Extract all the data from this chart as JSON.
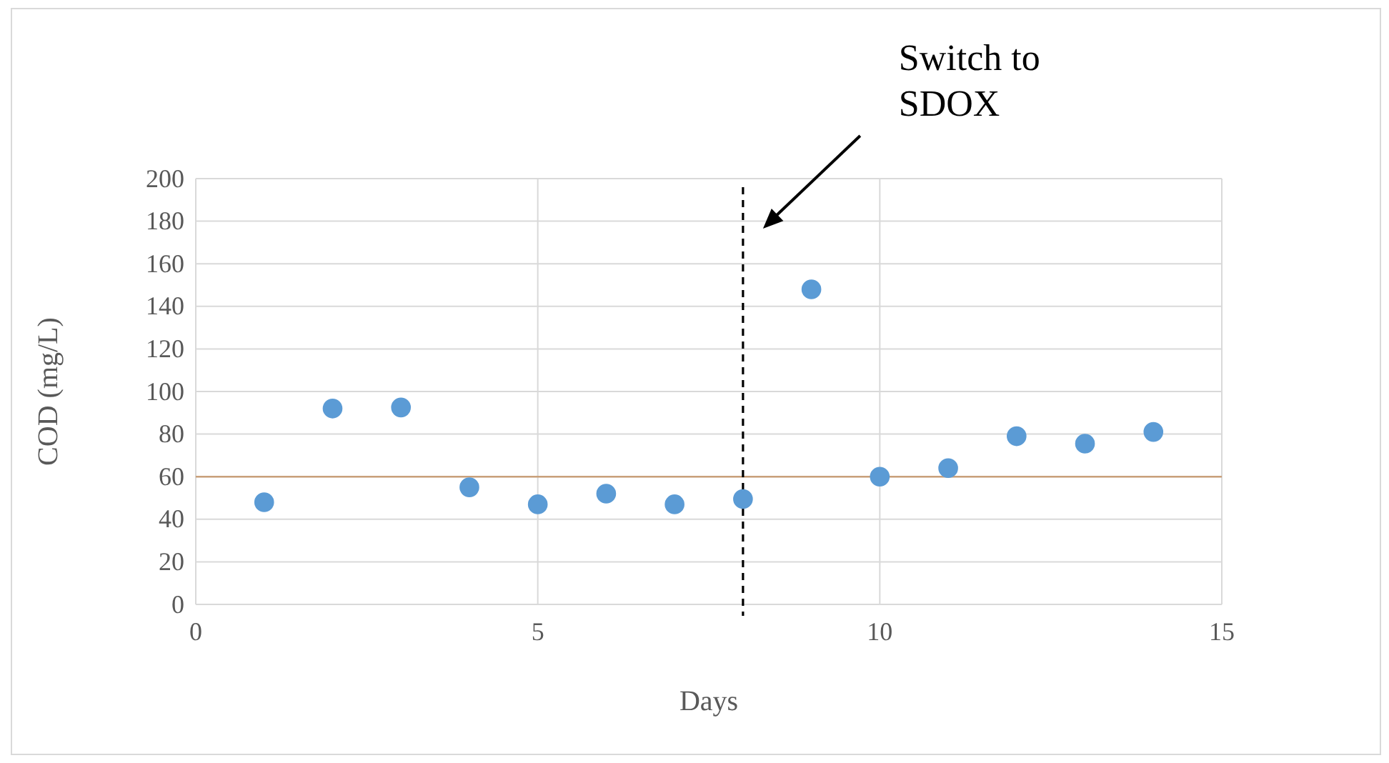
{
  "chart_data": {
    "type": "scatter",
    "xlabel": "Days",
    "ylabel": "COD (mg/L)",
    "x": [
      1,
      2,
      3,
      4,
      5,
      6,
      7,
      8,
      9,
      10,
      11,
      12,
      13,
      14
    ],
    "series": [
      {
        "color": "#5b9bd5",
        "values": [
          48,
          92,
          92.5,
          55,
          47,
          52,
          47,
          49.5,
          148,
          60,
          64,
          79,
          75.5,
          81
        ]
      }
    ],
    "xlim": [
      0,
      15
    ],
    "xticks": [
      0,
      5,
      10,
      15
    ],
    "ylim": [
      0,
      200
    ],
    "yticks": [
      0,
      20,
      40,
      60,
      80,
      100,
      120,
      140,
      160,
      180,
      200
    ],
    "grid": true,
    "marker": "circle",
    "ref_lines": [
      {
        "axis": "y",
        "value": 60,
        "color": "#c9a07a",
        "line_style": "solid"
      },
      {
        "axis": "x",
        "value": 8,
        "label": "Switch to SDOX",
        "color": "#000000",
        "line_style": "dashed"
      }
    ]
  }
}
